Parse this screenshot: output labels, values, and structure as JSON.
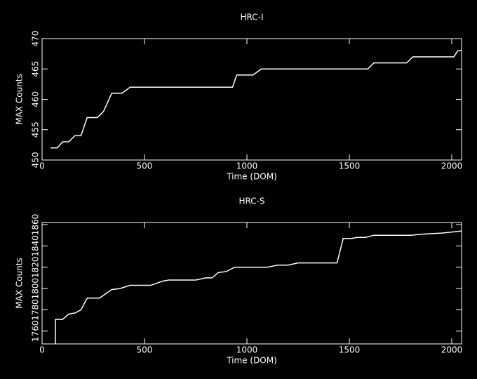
{
  "chart_data": [
    {
      "type": "line",
      "title": "HRC-I",
      "x_label": "Time (DOM)",
      "y_label": "MAX Counts",
      "xlim": [
        0,
        2048
      ],
      "xticks": [
        0,
        500,
        1000,
        1500,
        2000
      ],
      "ylim": [
        450,
        470
      ],
      "yticks": [
        450,
        455,
        460,
        465,
        470
      ],
      "series": [
        {
          "color": "#ffffff",
          "x": [
            41,
            75,
            100,
            130,
            160,
            190,
            220,
            270,
            300,
            340,
            390,
            430,
            930,
            950,
            1030,
            1070,
            1590,
            1620,
            1780,
            1810,
            2010,
            2030,
            2048
          ],
          "values": [
            452,
            452,
            453,
            453,
            454,
            454,
            457,
            457,
            458,
            461,
            461,
            462,
            462,
            464,
            464,
            465,
            465,
            466,
            466,
            467,
            467,
            468,
            468
          ]
        }
      ]
    },
    {
      "type": "line",
      "title": "HRC-S",
      "x_label": "Time (DOM)",
      "y_label": "MAX Counts",
      "xlim": [
        0,
        2048
      ],
      "xticks": [
        0,
        500,
        1000,
        1500,
        2000
      ],
      "ylim": [
        1748,
        1862
      ],
      "yticks": [
        1760,
        1780,
        1800,
        1820,
        1840,
        1860
      ],
      "series": [
        {
          "color": "#ffffff",
          "x": [
            65,
            65,
            100,
            130,
            160,
            190,
            220,
            280,
            340,
            380,
            430,
            470,
            530,
            590,
            620,
            750,
            800,
            830,
            860,
            900,
            940,
            1100,
            1150,
            1200,
            1250,
            1440,
            1470,
            1510,
            1540,
            1580,
            1620,
            1800,
            1850,
            1950,
            2048
          ],
          "values": [
            1748,
            1771,
            1771,
            1776,
            1777,
            1780,
            1791,
            1791,
            1799,
            1800,
            1803,
            1803,
            1803,
            1807,
            1808,
            1808,
            1810,
            1810,
            1815,
            1816,
            1820,
            1820,
            1822,
            1822,
            1824,
            1824,
            1847,
            1847,
            1848,
            1848,
            1850,
            1850,
            1851,
            1852,
            1854
          ]
        }
      ]
    }
  ]
}
